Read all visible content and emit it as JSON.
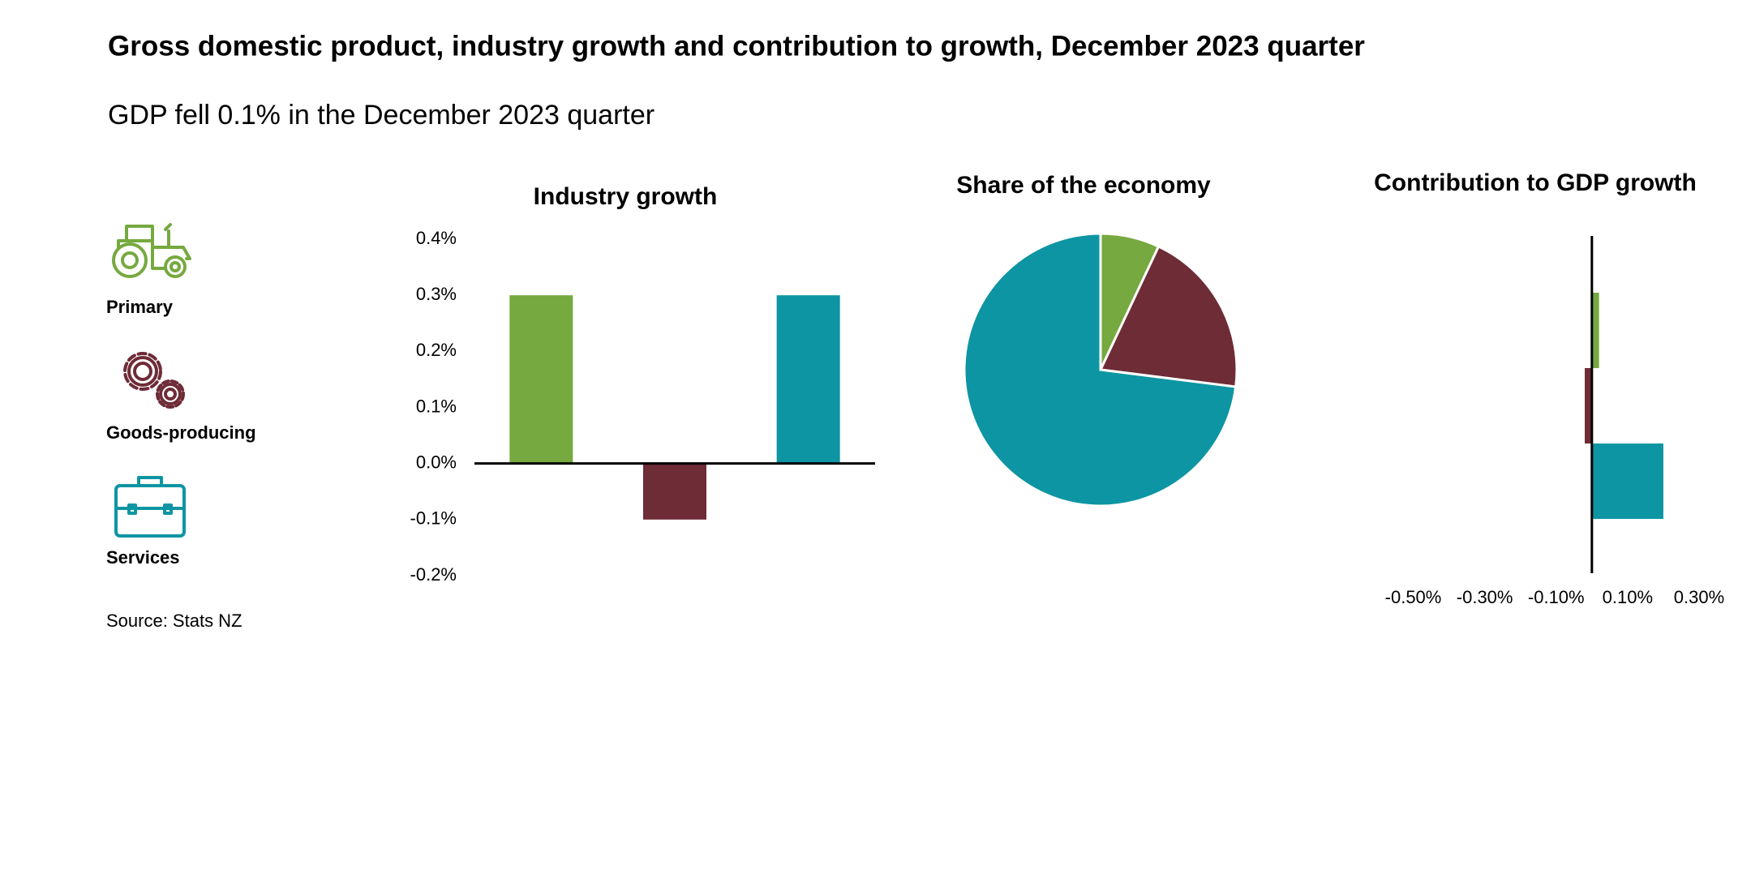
{
  "title": "Gross domestic product, industry growth and contribution to growth, December 2023 quarter",
  "subtitle": "GDP fell 0.1% in the December 2023 quarter",
  "source": "Source: Stats NZ",
  "chart_data": [
    {
      "type": "bar",
      "title": "Industry growth",
      "categories": [
        "Primary",
        "Goods-producing",
        "Services"
      ],
      "colors": [
        "#76a93f",
        "#6e2c37",
        "#0e95a3"
      ],
      "values": [
        0.3,
        -0.1,
        0.3
      ],
      "ylim": [
        -0.2,
        0.4
      ],
      "yticks": [
        {
          "value": 0.4,
          "label": "0.4%"
        },
        {
          "value": 0.3,
          "label": "0.3%"
        },
        {
          "value": 0.2,
          "label": "0.2%"
        },
        {
          "value": 0.1,
          "label": "0.1%"
        },
        {
          "value": 0,
          "label": "0.0%"
        },
        {
          "value": -0.1,
          "label": "-0.1%"
        },
        {
          "value": -0.2,
          "label": "-0.2%"
        }
      ]
    },
    {
      "type": "pie",
      "title": "Share of the economy",
      "values": [
        7,
        20,
        73
      ]
    },
    {
      "type": "hbar",
      "title": "Contribution to GDP growth",
      "values": [
        0.02,
        -0.02,
        0.2
      ],
      "xlim": [
        -0.5,
        0.3
      ],
      "xticks": [
        {
          "value": -0.5,
          "label": "-0.50%"
        },
        {
          "value": -0.3,
          "label": "-0.30%"
        },
        {
          "value": -0.1,
          "label": "-0.10%"
        },
        {
          "value": 0.1,
          "label": "0.10%"
        },
        {
          "value": 0.3,
          "label": "0.30%"
        }
      ]
    }
  ]
}
